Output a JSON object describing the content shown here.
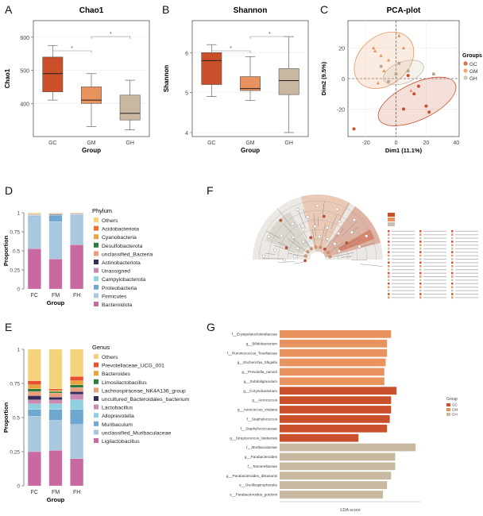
{
  "panels": {
    "A": {
      "label": "A"
    },
    "B": {
      "label": "B"
    },
    "C": {
      "label": "C"
    },
    "D": {
      "label": "D"
    },
    "E": {
      "label": "E"
    },
    "F": {
      "label": "F"
    },
    "G": {
      "label": "G"
    }
  },
  "colors": {
    "GC": "#c9502a",
    "GM": "#e8935e",
    "GH": "#c8b8a0"
  },
  "chart_data": [
    {
      "id": "A",
      "type": "box",
      "title": "Chao1",
      "xlabel": "Group",
      "ylabel": "Chao1",
      "categories": [
        "GC",
        "GM",
        "GH"
      ],
      "ylim": [
        300,
        650
      ],
      "yticks": [
        400,
        500,
        600
      ],
      "boxes": [
        {
          "min": 410,
          "q1": 435,
          "median": 490,
          "q3": 540,
          "max": 575
        },
        {
          "min": 330,
          "q1": 400,
          "median": 410,
          "q3": 450,
          "max": 490
        },
        {
          "min": 320,
          "q1": 350,
          "median": 370,
          "q3": 425,
          "max": 470
        }
      ],
      "sig": [
        {
          "from": 0,
          "to": 1,
          "label": "*"
        },
        {
          "from": 1,
          "to": 2,
          "label": "*"
        }
      ]
    },
    {
      "id": "B",
      "type": "box",
      "title": "Shannon",
      "xlabel": "Group",
      "ylabel": "Shannon",
      "categories": [
        "GC",
        "GM",
        "GH"
      ],
      "ylim": [
        3.9,
        6.8
      ],
      "yticks": [
        4,
        5,
        6
      ],
      "boxes": [
        {
          "min": 4.9,
          "q1": 5.2,
          "median": 5.8,
          "q3": 6.0,
          "max": 6.2
        },
        {
          "min": 4.8,
          "q1": 5.05,
          "median": 5.1,
          "q3": 5.4,
          "max": 5.9
        },
        {
          "min": 4.0,
          "q1": 4.95,
          "median": 5.3,
          "q3": 5.6,
          "max": 6.4
        }
      ],
      "sig": [
        {
          "from": 0,
          "to": 1,
          "label": "*"
        },
        {
          "from": 1,
          "to": 2,
          "label": "*"
        }
      ]
    },
    {
      "id": "C",
      "type": "scatter",
      "title": "PCA-plot",
      "xlabel": "Dim1 (11.1%)",
      "ylabel": "Dim2 (9.5%)",
      "xlim": [
        -32,
        42
      ],
      "ylim": [
        -38,
        38
      ],
      "xticks": [
        -20,
        0,
        20,
        40
      ],
      "yticks": [
        -20,
        0,
        20
      ],
      "legend_title": "Groups",
      "legend": [
        "GC",
        "GM",
        "GH"
      ],
      "series": [
        {
          "name": "GC",
          "points": [
            [
              -28,
              -33
            ],
            [
              5,
              -20
            ],
            [
              12,
              -10
            ],
            [
              15,
              -5
            ],
            [
              20,
              -18
            ],
            [
              8,
              2
            ],
            [
              22,
              -22
            ]
          ]
        },
        {
          "name": "GM",
          "points": [
            [
              -15,
              20
            ],
            [
              -10,
              15
            ],
            [
              2,
              28
            ],
            [
              -5,
              12
            ],
            [
              -8,
              5
            ],
            [
              5,
              20
            ],
            [
              10,
              -8
            ],
            [
              -12,
              -3
            ],
            [
              -14,
              18
            ]
          ]
        },
        {
          "name": "GH",
          "points": [
            [
              -10,
              8
            ],
            [
              2,
              10
            ],
            [
              8,
              5
            ],
            [
              -5,
              -2
            ],
            [
              25,
              3
            ],
            [
              0,
              3
            ]
          ]
        }
      ]
    },
    {
      "id": "D",
      "type": "stacked_bar",
      "xlabel": "Group",
      "ylabel": "Proportion",
      "legend_title": "Phylum",
      "categories": [
        "FC",
        "FM",
        "FH"
      ],
      "yticks": [
        0,
        0.25,
        0.5,
        0.75,
        1
      ],
      "legend": [
        "Others",
        "Acidobacteriota",
        "Cyanobacteria",
        "Desulfobacterota",
        "unclassified_Bacteria",
        "Actinobacteriota",
        "Unassigned",
        "Campylobacterota",
        "Proteobacteria",
        "Firmicutes",
        "Bacteroidota"
      ],
      "legend_colors": [
        "#f4d37a",
        "#e8732e",
        "#e8a53c",
        "#2f7a3d",
        "#e9a07a",
        "#3b2a5a",
        "#c98bb0",
        "#8fd0e0",
        "#6fa7d0",
        "#a8c8e0",
        "#c86aa0"
      ],
      "stack_order": [
        "Bacteroidota",
        "Firmicutes",
        "Proteobacteria",
        "Campylobacterota",
        "Unassigned",
        "Actinobacteriota",
        "unclassified_Bacteria",
        "Desulfobacterota",
        "Cyanobacteria",
        "Acidobacteriota",
        "Others"
      ],
      "series": {
        "Bacteroidota": [
          0.53,
          0.39,
          0.58
        ],
        "Firmicutes": [
          0.42,
          0.49,
          0.38
        ],
        "Proteobacteria": [
          0.01,
          0.08,
          0.01
        ],
        "Campylobacterota": [
          0.003,
          0.004,
          0.003
        ],
        "Unassigned": [
          0.004,
          0.004,
          0.004
        ],
        "Actinobacteriota": [
          0.006,
          0.008,
          0.006
        ],
        "unclassified_Bacteria": [
          0.005,
          0.004,
          0.004
        ],
        "Desulfobacterota": [
          0.004,
          0.003,
          0.003
        ],
        "Cyanobacteria": [
          0.004,
          0.003,
          0.003
        ],
        "Acidobacteriota": [
          0.004,
          0.004,
          0.003
        ],
        "Others": [
          0.01,
          0.004,
          0.003
        ]
      }
    },
    {
      "id": "E",
      "type": "stacked_bar",
      "xlabel": "Group",
      "ylabel": "Proportion",
      "legend_title": "Genus",
      "categories": [
        "FC",
        "FM",
        "FH"
      ],
      "yticks": [
        0,
        0.25,
        0.5,
        0.75,
        1
      ],
      "legend": [
        "Others",
        "Prevotellaceae_UCG_001",
        "Bacteroides",
        "Limosilactobacillus",
        "Lachnospiraceae_NK4A136_group",
        "uncultured_Bacteroidales_bacterium",
        "Lactobacillus",
        "Alloprevotella",
        "Muribaculum",
        "unclassified_Muribaculaceae",
        "Ligilactobacillus"
      ],
      "legend_colors": [
        "#f4d37a",
        "#e8502e",
        "#e8a53c",
        "#2f7a3d",
        "#e9a07a",
        "#3b2a5a",
        "#c98bb0",
        "#8fd0e0",
        "#6fa7d0",
        "#a8c8e0",
        "#c86aa0"
      ],
      "stack_order": [
        "Ligilactobacillus",
        "unclassified_Muribaculaceae",
        "Muribaculum",
        "Alloprevotella",
        "Lactobacillus",
        "uncultured_Bacteroidales_bacterium",
        "Lachnospiraceae_NK4A136_group",
        "Limosilactobacillus",
        "Bacteroides",
        "Prevotellaceae_UCG_001",
        "Others"
      ],
      "series": {
        "Ligilactobacillus": [
          0.25,
          0.26,
          0.2
        ],
        "unclassified_Muribaculaceae": [
          0.26,
          0.22,
          0.25
        ],
        "Muribaculum": [
          0.05,
          0.08,
          0.11
        ],
        "Alloprevotella": [
          0.04,
          0.04,
          0.07
        ],
        "Lactobacillus": [
          0.03,
          0.03,
          0.04
        ],
        "uncultured_Bacteroidales_bacterium": [
          0.03,
          0.02,
          0.02
        ],
        "Lachnospiraceae_NK4A136_group": [
          0.03,
          0.03,
          0.03
        ],
        "Limosilactobacillus": [
          0.02,
          0.01,
          0.02
        ],
        "Bacteroides": [
          0.03,
          0.01,
          0.03
        ],
        "Prevotellaceae_UCG_001": [
          0.03,
          0.01,
          0.03
        ],
        "Others": [
          0.23,
          0.29,
          0.2
        ]
      }
    },
    {
      "id": "G",
      "type": "hbar",
      "xlabel": "LDA score",
      "legend_title": "Group",
      "legend": [
        "GC",
        "GM",
        "GH"
      ],
      "items": [
        {
          "name": "f__Erysipelatoclostridiaceae",
          "group": "GM",
          "value": 4.1
        },
        {
          "name": "g__Bifidobacterium",
          "group": "GM",
          "value": 3.95
        },
        {
          "name": "f__Ruminococcus_Toxellaceae",
          "group": "GM",
          "value": 3.95
        },
        {
          "name": "g__Escherichia_Shigella",
          "group": "GM",
          "value": 3.9
        },
        {
          "name": "g__Prevotella_ramorii",
          "group": "GM",
          "value": 3.85
        },
        {
          "name": "g__Subdoligranulum",
          "group": "GM",
          "value": 3.85
        },
        {
          "name": "g__Corynebacterium",
          "group": "GC",
          "value": 4.3
        },
        {
          "name": "g__Aerococcus",
          "group": "GC",
          "value": 4.1
        },
        {
          "name": "g__Aerococcus_viridans",
          "group": "GC",
          "value": 4.1
        },
        {
          "name": "f__Staphylococcus",
          "group": "GC",
          "value": 4.05
        },
        {
          "name": "f__Staphylococcaceae",
          "group": "GC",
          "value": 3.95
        },
        {
          "name": "g__Streptococcus_lutetiensis",
          "group": "GC",
          "value": 2.9
        },
        {
          "name": "f__Muribaculaceae",
          "group": "GH",
          "value": 5.0
        },
        {
          "name": "g__Parabacteroides",
          "group": "GH",
          "value": 4.25
        },
        {
          "name": "f__Tannerellaceae",
          "group": "GH",
          "value": 4.25
        },
        {
          "name": "g__Parabacteroides_distasonis",
          "group": "GH",
          "value": 4.1
        },
        {
          "name": "s__Oscillospirophoreke",
          "group": "GH",
          "value": 3.95
        },
        {
          "name": "s__Parabacteroides_gordonii",
          "group": "GH",
          "value": 3.8
        }
      ]
    }
  ]
}
